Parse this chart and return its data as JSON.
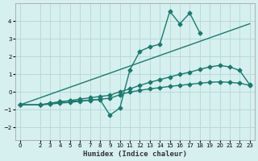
{
  "xlabel": "Humidex (Indice chaleur)",
  "background_color": "#d6f0ef",
  "grid_color": "#b8dada",
  "line_color": "#1a7a6e",
  "xlim": [
    -0.5,
    23.5
  ],
  "ylim": [
    -2.7,
    5.0
  ],
  "xticks": [
    0,
    2,
    3,
    4,
    5,
    6,
    7,
    8,
    9,
    10,
    11,
    12,
    13,
    14,
    15,
    16,
    17,
    18,
    19,
    20,
    21,
    22,
    23
  ],
  "yticks": [
    -2,
    -1,
    0,
    1,
    2,
    3,
    4
  ],
  "series": [
    {
      "x": [
        0,
        2,
        3,
        4,
        5,
        6,
        7,
        8,
        9,
        10,
        11,
        12,
        13,
        14,
        15,
        16,
        17,
        18,
        19,
        20,
        21,
        22,
        23
      ],
      "y": [
        -0.72,
        -0.72,
        -0.68,
        -0.62,
        -0.58,
        -0.52,
        -0.46,
        -0.4,
        -0.35,
        -0.15,
        0.0,
        0.1,
        0.18,
        0.25,
        0.32,
        0.38,
        0.44,
        0.5,
        0.55,
        0.58,
        0.55,
        0.5,
        0.38
      ],
      "marker": "D",
      "markersize": 2.5,
      "linewidth": 1.0
    },
    {
      "x": [
        0,
        2,
        3,
        4,
        5,
        6,
        7,
        8,
        9,
        10,
        11,
        12,
        13,
        14,
        15,
        16,
        17,
        18,
        19,
        20,
        21,
        22,
        23
      ],
      "y": [
        -0.72,
        -0.72,
        -0.65,
        -0.55,
        -0.5,
        -0.5,
        -0.45,
        -0.42,
        -1.3,
        -0.9,
        1.25,
        2.3,
        2.55,
        2.7,
        4.55,
        3.85,
        4.45,
        3.35,
        null,
        null,
        null,
        null,
        null
      ],
      "marker": "D",
      "markersize": 2.5,
      "linewidth": 1.0
    },
    {
      "x": [
        0,
        2,
        3,
        4,
        5,
        6,
        7,
        8,
        9,
        10,
        11,
        12,
        13,
        14,
        15,
        16,
        17,
        18,
        19,
        20,
        21,
        22,
        23
      ],
      "y": [
        -0.72,
        -0.72,
        -0.62,
        -0.55,
        -0.48,
        -0.4,
        -0.32,
        -0.25,
        -0.18,
        0.02,
        0.18,
        0.38,
        0.55,
        0.7,
        0.85,
        1.0,
        1.12,
        1.28,
        1.42,
        1.5,
        1.42,
        1.22,
        0.42
      ],
      "marker": "D",
      "markersize": 2.5,
      "linewidth": 1.0
    },
    {
      "x": [
        0,
        23
      ],
      "y": [
        -0.72,
        3.85
      ],
      "marker": null,
      "markersize": 0,
      "linewidth": 1.0
    }
  ]
}
